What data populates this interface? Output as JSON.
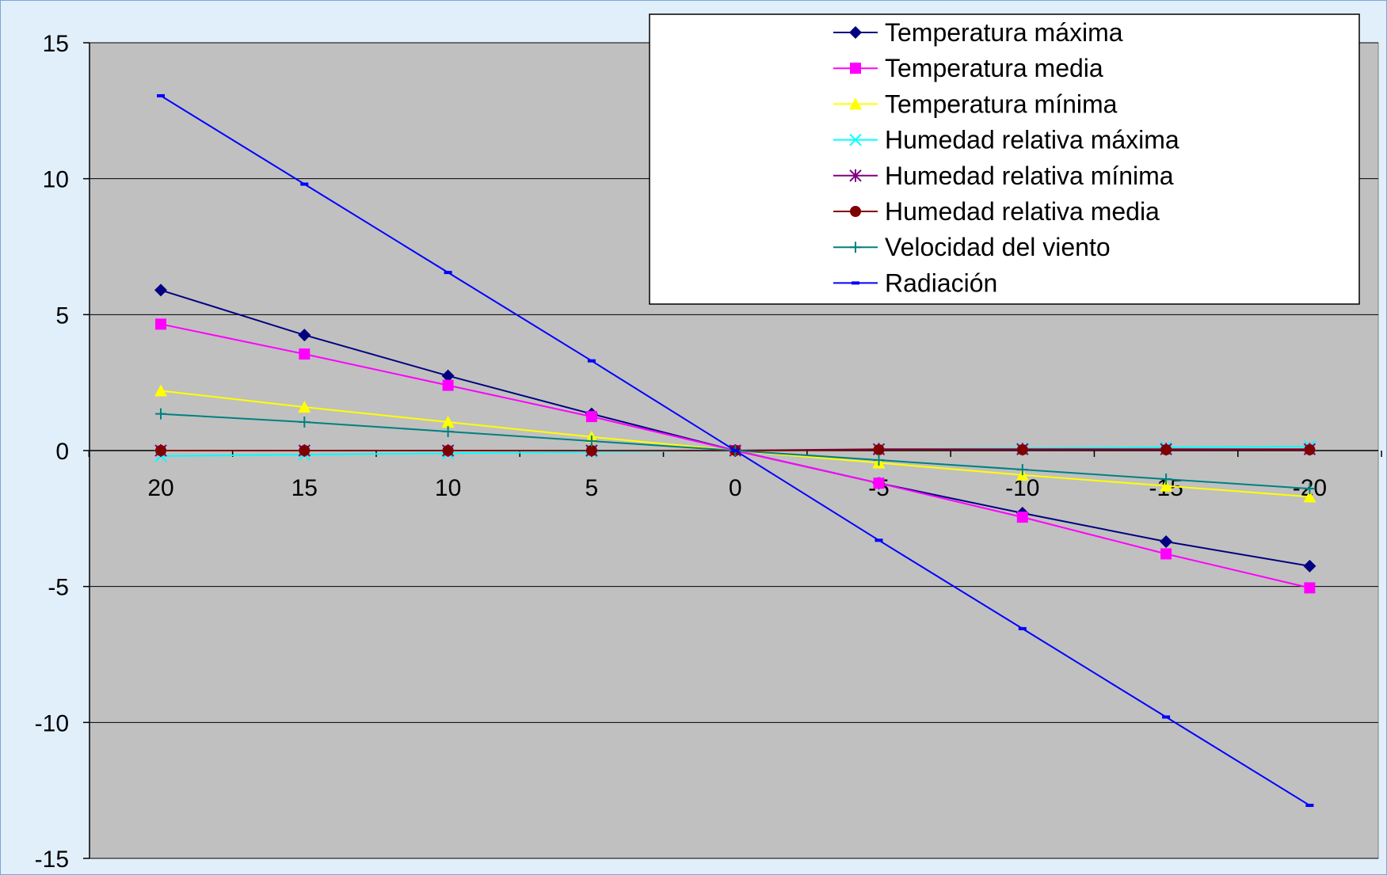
{
  "chart_data": {
    "type": "line",
    "x": [
      20,
      15,
      10,
      5,
      0,
      -5,
      -10,
      -15,
      -20
    ],
    "ylim": [
      -15,
      15
    ],
    "yticks": [
      15,
      10,
      5,
      0,
      -5,
      -10,
      -15
    ],
    "xticks": [
      "20",
      "15",
      "10",
      "5",
      "0",
      "-5",
      "-10",
      "-15",
      "-20"
    ],
    "grid": "horizontal",
    "legend_position": "top-right",
    "plot_background": "#c0c0c0",
    "page_background": "#e1effb",
    "series": [
      {
        "name": "Temperatura máxima",
        "color": "#000080",
        "marker": "diamond",
        "values": [
          5.9,
          4.25,
          2.75,
          1.35,
          0,
          -1.2,
          -2.3,
          -3.35,
          -4.25
        ]
      },
      {
        "name": "Temperatura media",
        "color": "#ff00ff",
        "marker": "square",
        "values": [
          4.65,
          3.55,
          2.4,
          1.25,
          0,
          -1.2,
          -2.45,
          -3.8,
          -5.05
        ]
      },
      {
        "name": "Temperatura mínima",
        "color": "#ffff00",
        "marker": "triangle",
        "values": [
          2.2,
          1.6,
          1.05,
          0.5,
          0,
          -0.45,
          -0.9,
          -1.3,
          -1.7
        ]
      },
      {
        "name": "Humedad relativa máxima",
        "color": "#00ffff",
        "marker": "x",
        "values": [
          -0.2,
          -0.15,
          -0.1,
          -0.05,
          0,
          0.05,
          0.08,
          0.12,
          0.15
        ]
      },
      {
        "name": "Humedad relativa mínima",
        "color": "#800080",
        "marker": "star",
        "values": [
          0,
          0,
          0,
          0,
          0,
          0.05,
          0.05,
          0.05,
          0.05
        ]
      },
      {
        "name": "Humedad relativa media",
        "color": "#800000",
        "marker": "circle",
        "values": [
          0,
          0,
          0,
          0,
          0,
          0.03,
          0.03,
          0.03,
          0.03
        ]
      },
      {
        "name": "Velocidad del viento",
        "color": "#008080",
        "marker": "plus",
        "values": [
          1.35,
          1.05,
          0.7,
          0.35,
          0,
          -0.35,
          -0.7,
          -1.05,
          -1.4
        ]
      },
      {
        "name": "Radiación",
        "color": "#0000ff",
        "marker": "dash",
        "values": [
          13.05,
          9.8,
          6.55,
          3.3,
          0,
          -3.3,
          -6.55,
          -9.8,
          -13.05
        ]
      }
    ]
  }
}
